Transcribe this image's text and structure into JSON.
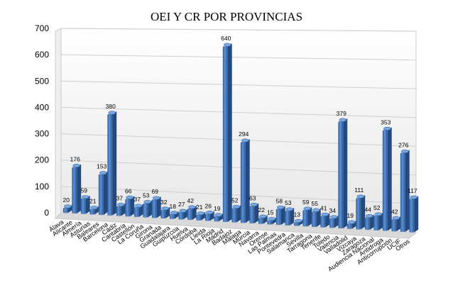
{
  "chart_data": {
    "type": "bar",
    "title": "OEI Y CR POR PROVINCIAS",
    "xlabel": "",
    "ylabel": "",
    "ylim": [
      0,
      700
    ],
    "yticks": [
      "0",
      "100",
      "200",
      "300",
      "400",
      "500",
      "600",
      "700"
    ],
    "grid": true,
    "legend": "none",
    "bar_color": "#4a7dc0",
    "categories": [
      "Álava",
      "Alicante",
      "Almería",
      "Asturias",
      "Baleares",
      "Barcelona",
      "Cádiz",
      "Cantabria",
      "Castellón",
      "La Coruña",
      "Girona",
      "Granada",
      "Guadalajara",
      "Guipúzcoa",
      "Huelva",
      "Córdoba",
      "Lleida",
      "La Rioja",
      "Madrid",
      "Badajoz",
      "Málaga",
      "Murcia",
      "Navarra",
      "Orense",
      "Las Palmas",
      "Pontevedra",
      "Salamanca",
      "Sevilla",
      "Tarragona",
      "Tenerife",
      "Toledo",
      "Valencia",
      "Valladolid",
      "Vizcaya",
      "Zaragoza",
      "Audiencia Nacional",
      "Antidroga",
      "Anticorrupción",
      "UCIF",
      "Otros"
    ],
    "values": [
      20,
      176,
      59,
      21,
      153,
      380,
      37,
      66,
      37,
      53,
      69,
      32,
      18,
      27,
      42,
      21,
      26,
      19,
      640,
      52,
      294,
      63,
      22,
      15,
      58,
      53,
      13,
      59,
      55,
      41,
      34,
      379,
      19,
      111,
      44,
      52,
      353,
      42,
      276,
      117
    ]
  }
}
